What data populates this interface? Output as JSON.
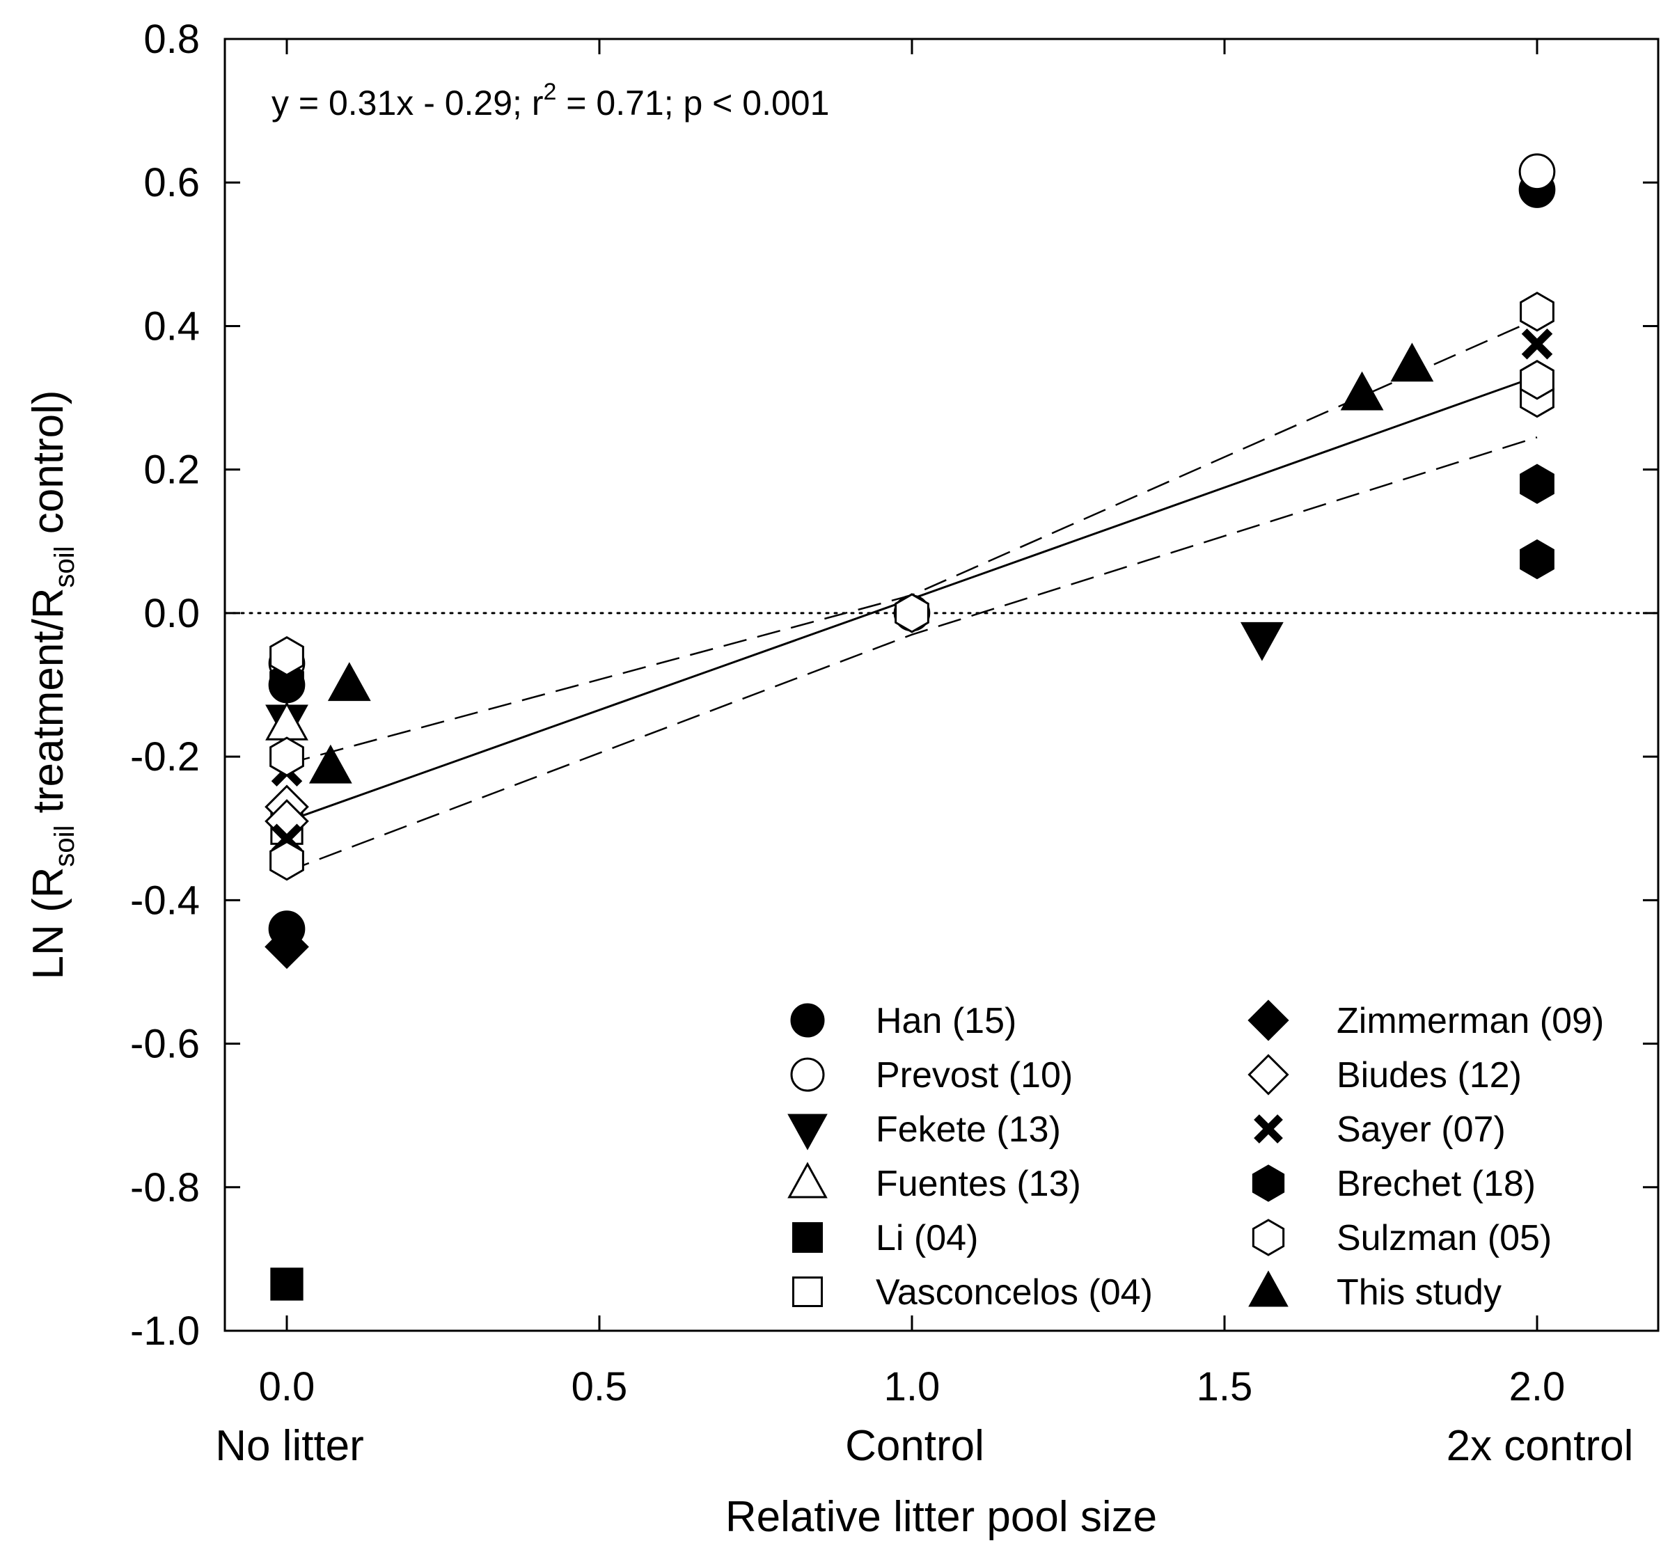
{
  "chart_data": {
    "type": "scatter",
    "title": "",
    "xlabel": "Relative litter pool size",
    "ylabel": {
      "main": "LN (R",
      "sub1": "soil",
      "mid": " treatment/R",
      "sub2": "soil",
      "end": " control)"
    },
    "xlim": [
      -0.1,
      2.2
    ],
    "ylim": [
      -1.0,
      0.8
    ],
    "x_ticks": [
      0.0,
      0.5,
      1.0,
      1.5,
      2.0
    ],
    "x_tick_labels": [
      "0.0",
      "0.5",
      "1.0",
      "1.5",
      "2.0"
    ],
    "y_ticks": [
      0.8,
      0.6,
      0.4,
      0.2,
      0.0,
      -0.2,
      -0.4,
      -0.6,
      -0.8,
      -1.0
    ],
    "y_tick_labels": [
      "0.8",
      "0.6",
      "0.4",
      "0.2",
      "0.0",
      "-0.2",
      "-0.4",
      "-0.6",
      "-0.8",
      "-1.0"
    ],
    "category_labels": [
      {
        "x": 0.0,
        "text": "No litter"
      },
      {
        "x": 1.0,
        "text": "Control"
      },
      {
        "x": 2.0,
        "text": "2x control"
      }
    ],
    "annotation": {
      "pre": "y = 0.31x - 0.29; r",
      "sup": "2",
      "post": " = 0.71; p < 0.001"
    },
    "regression": {
      "slope": 0.31,
      "intercept": -0.29,
      "x_range": [
        0.0,
        2.0
      ]
    },
    "confidence_band": {
      "upper": [
        [
          0.0,
          -0.21
        ],
        [
          1.0,
          0.025
        ],
        [
          2.0,
          0.41
        ]
      ],
      "lower": [
        [
          0.0,
          -0.36
        ],
        [
          1.0,
          -0.03
        ],
        [
          2.0,
          0.245
        ]
      ]
    },
    "reference_line": {
      "y": 0.0,
      "style": "dotted"
    },
    "series": [
      {
        "name": "Han (15)",
        "marker": "circle",
        "fill": "black",
        "points": [
          [
            0.0,
            -0.44
          ],
          [
            0.0,
            -0.1
          ],
          [
            2.0,
            0.59
          ]
        ]
      },
      {
        "name": "Prevost (10)",
        "marker": "circle",
        "fill": "white",
        "points": [
          [
            0.0,
            -0.07
          ],
          [
            1.0,
            0.0
          ],
          [
            2.0,
            0.615
          ]
        ]
      },
      {
        "name": "Fekete (13)",
        "marker": "triangle-down",
        "fill": "black",
        "points": [
          [
            0.0,
            -0.15
          ],
          [
            1.56,
            -0.035
          ]
        ]
      },
      {
        "name": "Fuentes (13)",
        "marker": "triangle-up",
        "fill": "white",
        "points": [
          [
            0.0,
            -0.155
          ]
        ]
      },
      {
        "name": "Li (04)",
        "marker": "square",
        "fill": "black",
        "points": [
          [
            0.0,
            -0.935
          ]
        ]
      },
      {
        "name": "Vasconcelos (04)",
        "marker": "square",
        "fill": "white",
        "points": [
          [
            0.0,
            -0.3
          ]
        ]
      },
      {
        "name": "Zimmerman (09)",
        "marker": "diamond",
        "fill": "black",
        "points": [
          [
            0.0,
            -0.465
          ]
        ]
      },
      {
        "name": "Biudes (12)",
        "marker": "diamond",
        "fill": "white",
        "points": [
          [
            0.0,
            -0.27
          ],
          [
            0.0,
            -0.29
          ]
        ]
      },
      {
        "name": "Sayer (07)",
        "marker": "x",
        "fill": "black",
        "points": [
          [
            0.0,
            -0.22
          ],
          [
            0.0,
            -0.315
          ],
          [
            2.0,
            0.375
          ]
        ]
      },
      {
        "name": "Brechet (18)",
        "marker": "hexagon",
        "fill": "black",
        "points": [
          [
            0.0,
            -0.095
          ],
          [
            2.0,
            0.18
          ],
          [
            2.0,
            0.075
          ]
        ]
      },
      {
        "name": "Sulzman (05)",
        "marker": "hexagon",
        "fill": "white",
        "points": [
          [
            0.0,
            -0.06
          ],
          [
            0.0,
            -0.2
          ],
          [
            0.0,
            -0.345
          ],
          [
            1.0,
            0.0
          ],
          [
            2.0,
            0.42
          ],
          [
            2.0,
            0.3
          ],
          [
            2.0,
            0.325
          ]
        ]
      },
      {
        "name": "This study",
        "marker": "triangle-up",
        "fill": "black",
        "points": [
          [
            0.1,
            -0.1
          ],
          [
            0.07,
            -0.215
          ],
          [
            1.72,
            0.305
          ],
          [
            1.8,
            0.345
          ]
        ]
      }
    ],
    "legend": {
      "placement": "bottom-right",
      "columns": [
        [
          "Han (15)",
          "Prevost (10)",
          "Fekete (13)",
          "Fuentes (13)",
          "Li (04)",
          "Vasconcelos (04)"
        ],
        [
          "Zimmerman (09)",
          "Biudes (12)",
          "Sayer (07)",
          "Brechet (18)",
          "Sulzman (05)",
          "This study"
        ]
      ]
    }
  }
}
